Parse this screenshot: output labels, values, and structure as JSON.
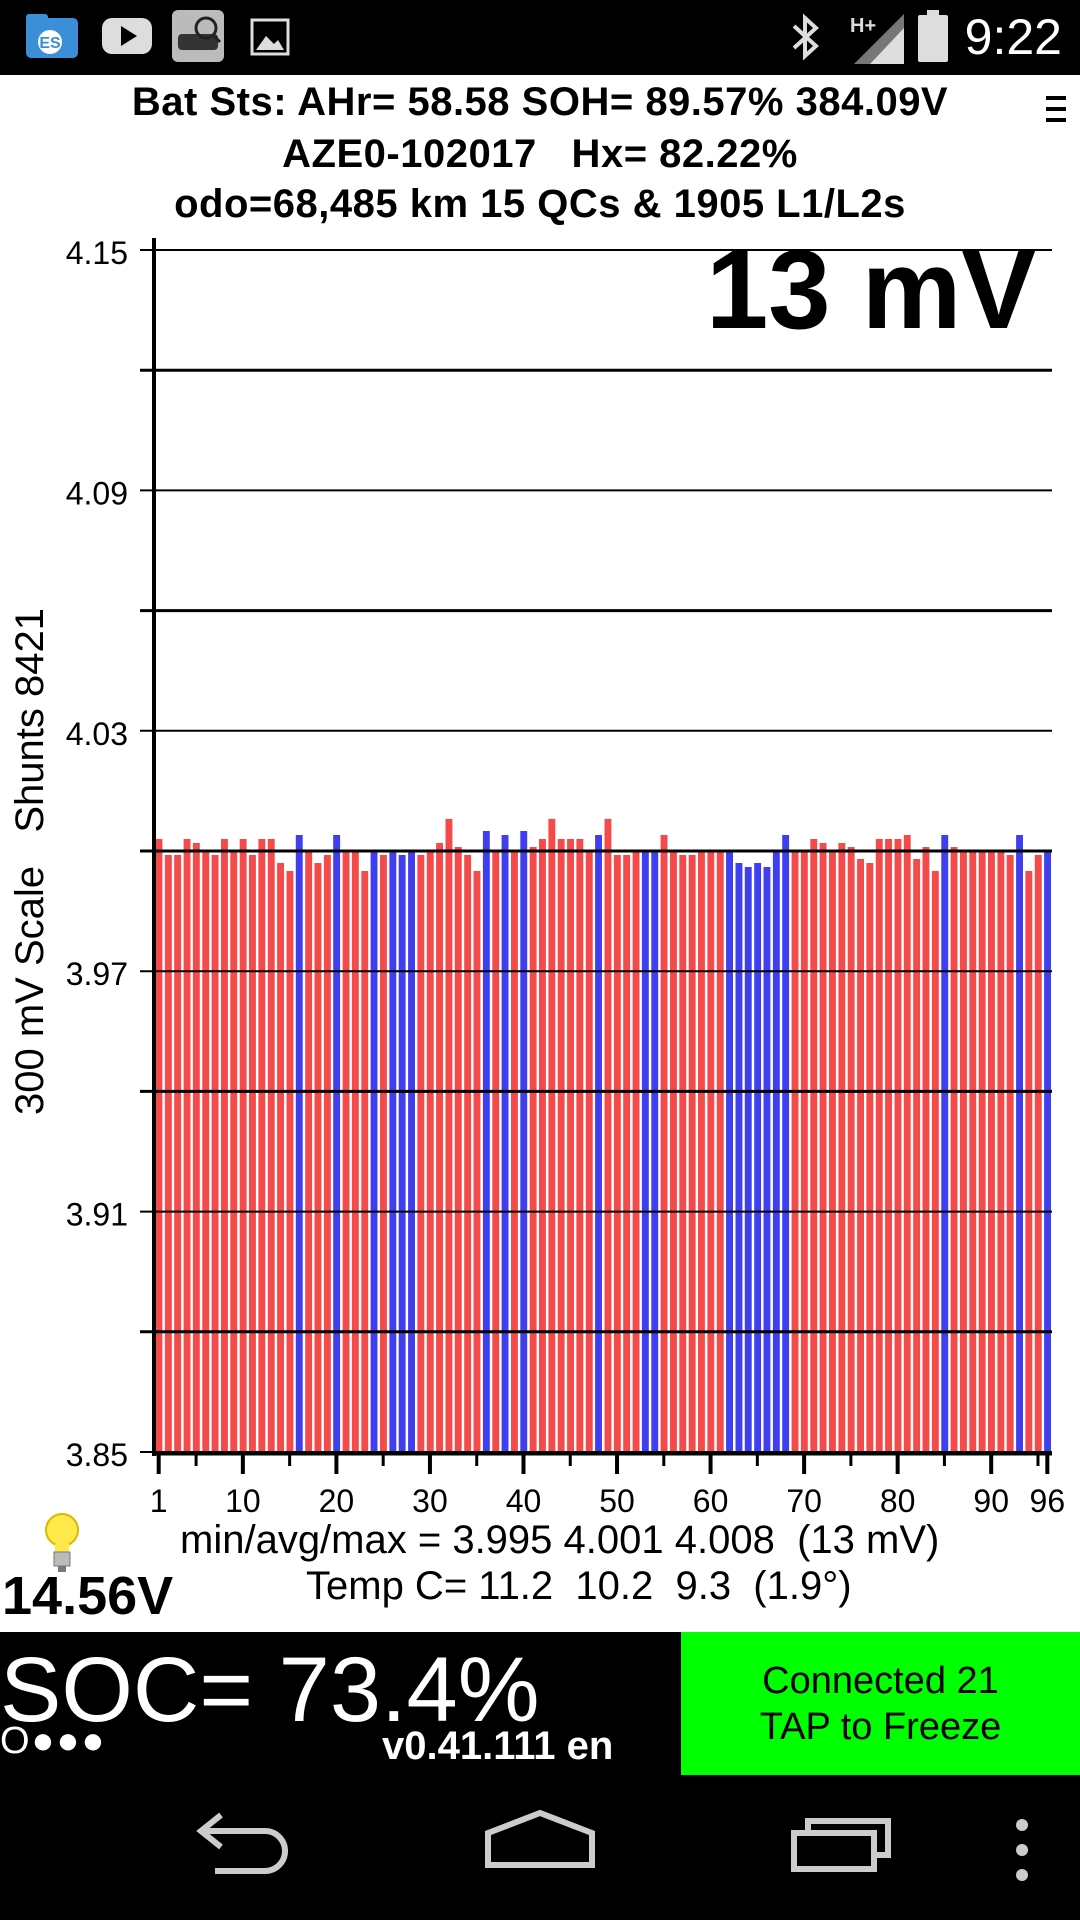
{
  "status_bar": {
    "time": "9:22",
    "left_icons": [
      "file-manager-icon",
      "youtube-icon",
      "car-app-icon",
      "gallery-icon"
    ],
    "right_icons": [
      "bluetooth-icon",
      "signal-hplus-icon",
      "battery-icon"
    ],
    "network": "H+"
  },
  "header": {
    "line1": "Bat Sts: AHr= 58.58 SOH= 89.57% 384.09V",
    "line2": "AZE0-102017   Hx= 82.22%",
    "line3": "odo=68,485 km 15 QCs & 1905 L1/L2s",
    "menu_icon": "menu-icon"
  },
  "chart_data": {
    "type": "bar",
    "spread_label": "13 mV",
    "ylabel": "300 mV Scale   Shunts 8421",
    "ylim": [
      3.85,
      4.15
    ],
    "yticks": [
      "4.15",
      "4.09",
      "4.03",
      "3.97",
      "3.91",
      "3.85"
    ],
    "xticks": [
      "1",
      "10",
      "20",
      "30",
      "40",
      "50",
      "60",
      "70",
      "80",
      "90",
      "96"
    ],
    "grid": true,
    "colors": {
      "normal": "#f44a4a",
      "shunt": "#3f3ff0"
    },
    "values": [
      4.003,
      3.999,
      3.999,
      4.003,
      4.002,
      4.0,
      3.999,
      4.003,
      4.0,
      4.003,
      3.999,
      4.003,
      4.003,
      3.997,
      3.995,
      4.004,
      4.0,
      3.997,
      3.999,
      4.004,
      4.0,
      4.0,
      3.995,
      4.0,
      3.999,
      4.0,
      3.999,
      4.0,
      3.999,
      4.0,
      4.002,
      4.008,
      4.001,
      3.999,
      3.995,
      4.005,
      4.0,
      4.004,
      4.0,
      4.005,
      4.001,
      4.003,
      4.008,
      4.003,
      4.003,
      4.003,
      4.0,
      4.004,
      4.008,
      3.999,
      3.999,
      4.0,
      4.0,
      4.0,
      4.004,
      4.0,
      3.999,
      3.999,
      4.0,
      4.0,
      4.0,
      4.0,
      3.997,
      3.996,
      3.997,
      3.996,
      4.0,
      4.004,
      4.0,
      4.0,
      4.003,
      4.002,
      4.0,
      4.002,
      4.001,
      3.998,
      3.997,
      4.003,
      4.003,
      4.003,
      4.004,
      3.998,
      4.001,
      3.995,
      4.004,
      4.001,
      4.0,
      4.0,
      4.0,
      4.0,
      4.0,
      3.999,
      4.004,
      3.995,
      3.999,
      4.0
    ],
    "shunts": [
      0,
      0,
      0,
      0,
      0,
      0,
      0,
      0,
      0,
      0,
      0,
      0,
      0,
      0,
      0,
      1,
      0,
      0,
      0,
      1,
      0,
      0,
      0,
      1,
      0,
      1,
      1,
      1,
      0,
      0,
      0,
      0,
      0,
      0,
      0,
      1,
      0,
      1,
      0,
      1,
      0,
      0,
      0,
      0,
      0,
      0,
      0,
      1,
      0,
      0,
      0,
      0,
      1,
      1,
      0,
      0,
      0,
      0,
      0,
      0,
      0,
      1,
      1,
      1,
      1,
      1,
      1,
      1,
      0,
      0,
      0,
      0,
      0,
      0,
      0,
      0,
      0,
      0,
      0,
      0,
      0,
      0,
      0,
      0,
      1,
      0,
      0,
      0,
      0,
      0,
      0,
      0,
      1,
      0,
      0,
      1
    ]
  },
  "stats": {
    "minavgmax": "min/avg/max = 3.995 4.001 4.008  (13 mV)",
    "temp": "Temp C= 11.2  10.2  9.3  (1.9°)"
  },
  "aux": {
    "voltage": "14.56V",
    "bulb_icon": "lightbulb-icon"
  },
  "footer": {
    "soc": "SOC= 73.4%",
    "dots": "O●●●",
    "version": "v0.41.111 en",
    "connect_line1": "Connected 21",
    "connect_line2": "TAP to Freeze",
    "connect_color": "#00ff00"
  },
  "nav": {
    "icons": [
      "back-icon",
      "home-icon",
      "recents-icon",
      "overflow-menu-icon"
    ]
  }
}
